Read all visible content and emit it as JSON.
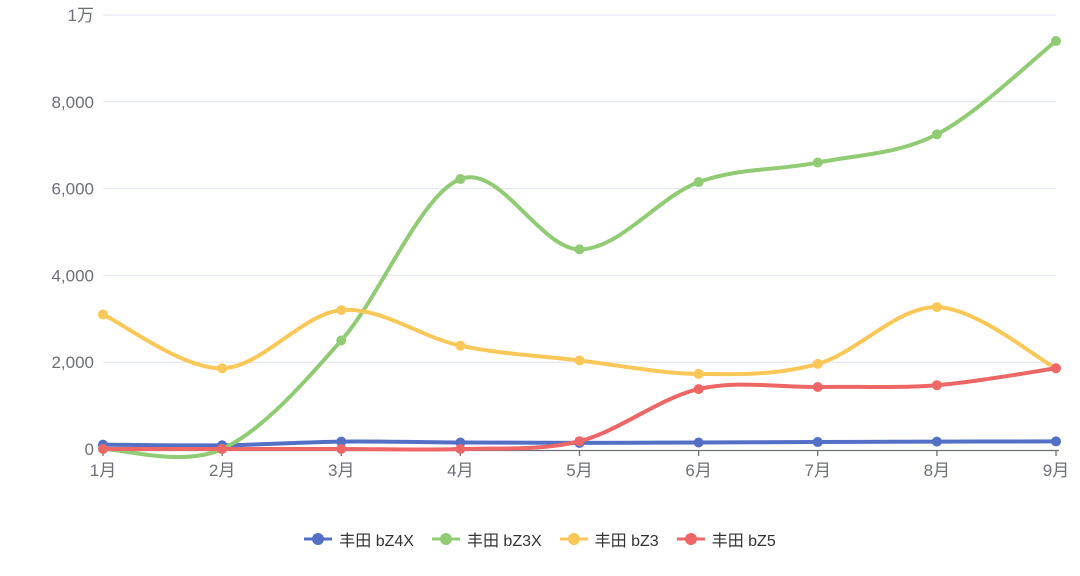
{
  "chart_data": {
    "type": "line",
    "smooth": true,
    "title": "",
    "categories": [
      "1月",
      "2月",
      "3月",
      "4月",
      "5月",
      "6月",
      "7月",
      "8月",
      "9月"
    ],
    "series": [
      {
        "name": "丰田 bZ4X",
        "color": "#5470C6",
        "values": [
          100,
          85,
          170,
          150,
          140,
          150,
          160,
          170,
          175
        ]
      },
      {
        "name": "丰田 bZ3X",
        "color": "#91CC75",
        "values": [
          0,
          0,
          2500,
          6220,
          4600,
          6150,
          6600,
          7250,
          9400
        ]
      },
      {
        "name": "丰田 bZ3",
        "color": "#FAC858",
        "values": [
          3100,
          1860,
          3200,
          2380,
          2040,
          1730,
          1960,
          3270,
          1860
        ]
      },
      {
        "name": "丰田 bZ5",
        "color": "#EE6666",
        "values": [
          0,
          0,
          0,
          0,
          180,
          1380,
          1430,
          1470,
          1860
        ]
      }
    ],
    "y_axis": {
      "min": 0,
      "max": 10000,
      "tick_values": [
        0,
        2000,
        4000,
        6000,
        8000,
        10000
      ],
      "tick_labels": [
        "0",
        "2,000",
        "4,000",
        "6,000",
        "8,000",
        "1万"
      ]
    },
    "legend": {
      "position": "bottom",
      "items": [
        "丰田 bZ4X",
        "丰田 bZ3X",
        "丰田 bZ3",
        "丰田 bZ5"
      ]
    },
    "grid": true,
    "colors": {
      "background": "#FFFFFF",
      "grid_line": "#E0E6F1",
      "axis_line": "#6E7079",
      "axis_label": "#6E7079",
      "legend_text": "#333333"
    },
    "style": {
      "line_width": 4,
      "marker_radius": 5
    }
  }
}
